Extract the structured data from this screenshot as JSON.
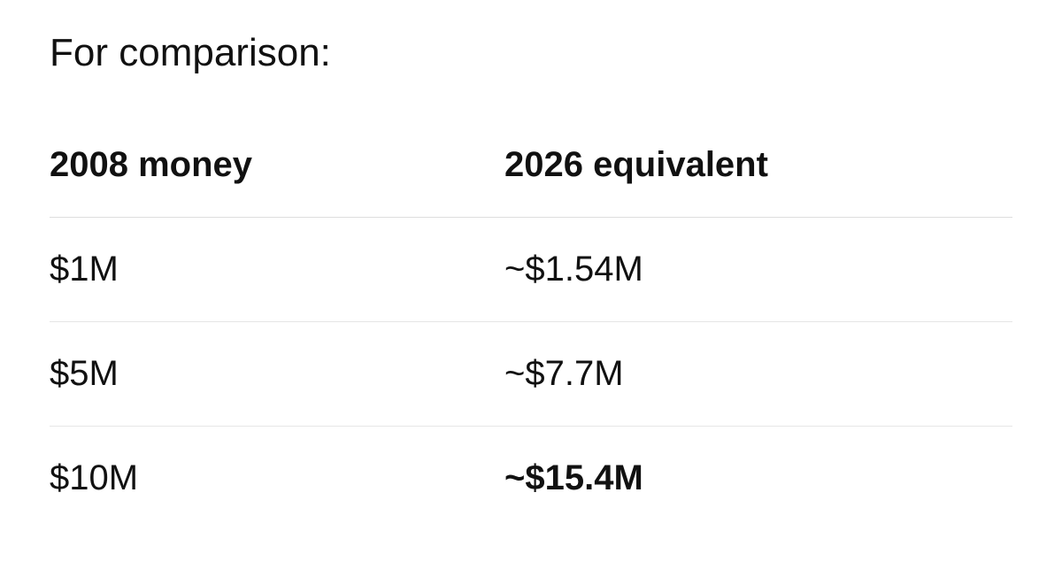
{
  "heading": "For comparison:",
  "table": {
    "header": [
      "2008 money",
      "2026 equivalent"
    ],
    "rows": [
      [
        "$1M",
        "~$1.54M"
      ],
      [
        "$5M",
        "~$7.7M"
      ],
      [
        "$10M",
        "~$15.4M"
      ]
    ]
  }
}
